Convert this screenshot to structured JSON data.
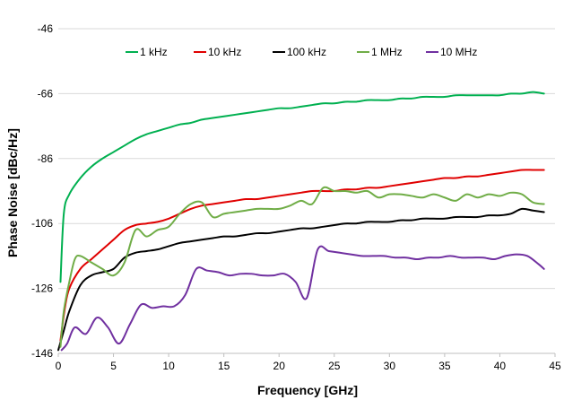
{
  "chart_data": {
    "type": "line",
    "title": "",
    "xlabel": "Frequency [GHz]",
    "ylabel": "Phase Noise [dBc/Hz]",
    "xlim": [
      0,
      45
    ],
    "ylim": [
      -146,
      -46
    ],
    "x_ticks": [
      "0",
      "5",
      "10",
      "15",
      "20",
      "25",
      "30",
      "35",
      "40",
      "45"
    ],
    "y_ticks": [
      "-46",
      "-66",
      "-86",
      "-106",
      "-126",
      "-146"
    ],
    "grid": "horizontal",
    "legend": "top",
    "series": [
      {
        "name": "1 kHz",
        "color": "#00b050",
        "x": [
          0.2,
          0.5,
          1,
          2,
          3,
          4,
          5,
          6,
          7,
          8,
          9,
          10,
          11,
          12,
          13,
          14,
          15,
          16,
          17,
          18,
          19,
          20,
          21,
          22,
          23,
          24,
          25,
          26,
          27,
          28,
          29,
          30,
          31,
          32,
          33,
          34,
          35,
          36,
          37,
          38,
          39,
          40,
          41,
          42,
          43,
          44
        ],
        "values": [
          -124,
          -103,
          -97,
          -92,
          -88.5,
          -86,
          -84,
          -82,
          -80,
          -78.5,
          -77.5,
          -76.5,
          -75.5,
          -75,
          -74,
          -73.5,
          -73,
          -72.5,
          -72,
          -71.5,
          -71,
          -70.5,
          -70.5,
          -70,
          -69.5,
          -69,
          -69,
          -68.5,
          -68.5,
          -68,
          -68,
          -68,
          -67.5,
          -67.5,
          -67,
          -67,
          -67,
          -66.5,
          -66.5,
          -66.5,
          -66.5,
          -66.5,
          -66,
          -66,
          -65.5,
          -66
        ]
      },
      {
        "name": "10 kHz",
        "color": "#e00000",
        "x": [
          0.2,
          0.6,
          1,
          2,
          3,
          4,
          5,
          6,
          7,
          8,
          9,
          10,
          11,
          12,
          13,
          14,
          15,
          16,
          17,
          18,
          19,
          20,
          21,
          22,
          23,
          24,
          25,
          26,
          27,
          28,
          29,
          30,
          31,
          32,
          33,
          34,
          35,
          36,
          37,
          38,
          39,
          40,
          41,
          42,
          43,
          44
        ],
        "values": [
          -142,
          -132,
          -126,
          -120,
          -117,
          -114,
          -111,
          -108,
          -106.5,
          -106,
          -105.5,
          -104.5,
          -103,
          -101.5,
          -100.5,
          -100,
          -99.5,
          -99,
          -98.5,
          -98.5,
          -98,
          -97.5,
          -97,
          -96.5,
          -96,
          -96,
          -96,
          -95.5,
          -95.5,
          -95,
          -95,
          -94.5,
          -94,
          -93.5,
          -93,
          -92.5,
          -92,
          -92,
          -91.5,
          -91.5,
          -91,
          -90.5,
          -90,
          -89.5,
          -89.5,
          -89.5
        ]
      },
      {
        "name": "100 kHz",
        "color": "#000000",
        "x": [
          0,
          0.5,
          1,
          2,
          3,
          4,
          5,
          6,
          7,
          8,
          9,
          10,
          11,
          12,
          13,
          14,
          15,
          16,
          17,
          18,
          19,
          20,
          21,
          22,
          23,
          24,
          25,
          26,
          27,
          28,
          29,
          30,
          31,
          32,
          33,
          34,
          35,
          36,
          37,
          38,
          39,
          40,
          41,
          42,
          43,
          44
        ],
        "values": [
          -145,
          -139,
          -133,
          -125,
          -122,
          -121,
          -120,
          -116.5,
          -115,
          -114.5,
          -114,
          -113,
          -112,
          -111.5,
          -111,
          -110.5,
          -110,
          -110,
          -109.5,
          -109,
          -109,
          -108.5,
          -108,
          -107.5,
          -107.5,
          -107,
          -106.5,
          -106,
          -106,
          -105.5,
          -105.5,
          -105.5,
          -105,
          -105,
          -104.5,
          -104.5,
          -104.5,
          -104,
          -104,
          -104,
          -103.5,
          -103.5,
          -103,
          -101.5,
          -102,
          -102.5
        ]
      },
      {
        "name": "1 MHz",
        "color": "#70ad47",
        "x": [
          0.2,
          0.5,
          1,
          1.5,
          2,
          3,
          4,
          5,
          6,
          7,
          8,
          9,
          10,
          11,
          12,
          13,
          14,
          15,
          16,
          17,
          18,
          19,
          20,
          21,
          22,
          23,
          24,
          25,
          26,
          27,
          28,
          29,
          30,
          31,
          32,
          33,
          34,
          35,
          36,
          37,
          38,
          39,
          40,
          41,
          42,
          43,
          44
        ],
        "values": [
          -144,
          -133,
          -124,
          -117,
          -116,
          -118,
          -120,
          -122,
          -118,
          -108,
          -110,
          -108,
          -107,
          -103,
          -100,
          -99.5,
          -104,
          -103,
          -102.5,
          -102,
          -101.5,
          -101.5,
          -101.5,
          -100.5,
          -99,
          -100,
          -95,
          -96,
          -96,
          -96.5,
          -96,
          -98,
          -97,
          -97,
          -97.5,
          -98,
          -97,
          -98,
          -99,
          -97,
          -98,
          -97,
          -97.5,
          -96.5,
          -97,
          -99.5,
          -100
        ]
      },
      {
        "name": "10 MHz",
        "color": "#7030a0",
        "x": [
          0.3,
          0.8,
          1.5,
          2.5,
          3.5,
          4.5,
          5.5,
          6.5,
          7.5,
          8.5,
          9.5,
          10.5,
          11.5,
          12.5,
          13.5,
          14.5,
          15.5,
          16.5,
          17.5,
          18.5,
          19.5,
          20.5,
          21.5,
          22.5,
          23.5,
          24.5,
          25.5,
          26.5,
          27.5,
          28.5,
          29.5,
          30.5,
          31.5,
          32.5,
          33.5,
          34.5,
          35.5,
          36.5,
          37.5,
          38.5,
          39.5,
          40.5,
          41.5,
          42.5,
          43.5,
          44
        ],
        "values": [
          -145,
          -143,
          -138,
          -140,
          -135,
          -138,
          -143,
          -137,
          -131,
          -132,
          -131.5,
          -131.5,
          -128,
          -120,
          -120.5,
          -121,
          -122,
          -121.5,
          -121.5,
          -122,
          -122,
          -121.5,
          -124,
          -129,
          -114,
          -114.5,
          -115,
          -115.5,
          -116,
          -116,
          -116,
          -116.5,
          -116.5,
          -117,
          -116.5,
          -116.5,
          -116,
          -116.5,
          -116.5,
          -116.5,
          -117,
          -116,
          -115.5,
          -116,
          -118.5,
          -120
        ]
      }
    ]
  }
}
